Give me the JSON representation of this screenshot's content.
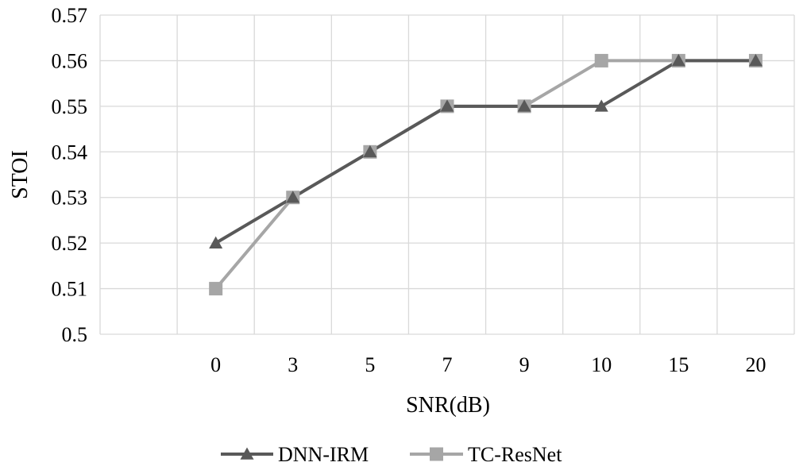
{
  "chart_data": {
    "type": "line",
    "title": "",
    "xlabel": "SNR(dB)",
    "ylabel": "STOI",
    "categories": [
      "",
      "0",
      "3",
      "5",
      "7",
      "9",
      "10",
      "15",
      "20"
    ],
    "ylim": [
      0.5,
      0.57
    ],
    "yticks": [
      "0.5",
      "0.51",
      "0.52",
      "0.53",
      "0.54",
      "0.55",
      "0.56",
      "0.57"
    ],
    "grid": true,
    "legend_position": "bottom",
    "series": [
      {
        "name": "DNN-IRM",
        "marker": "triangle",
        "color": "#595959",
        "values": [
          null,
          0.52,
          0.53,
          0.54,
          0.55,
          0.55,
          0.55,
          0.56,
          0.56
        ]
      },
      {
        "name": "TC-ResNet",
        "marker": "square",
        "color": "#a6a6a6",
        "values": [
          null,
          0.51,
          0.53,
          0.54,
          0.55,
          0.55,
          0.56,
          0.56,
          0.56
        ]
      }
    ]
  }
}
